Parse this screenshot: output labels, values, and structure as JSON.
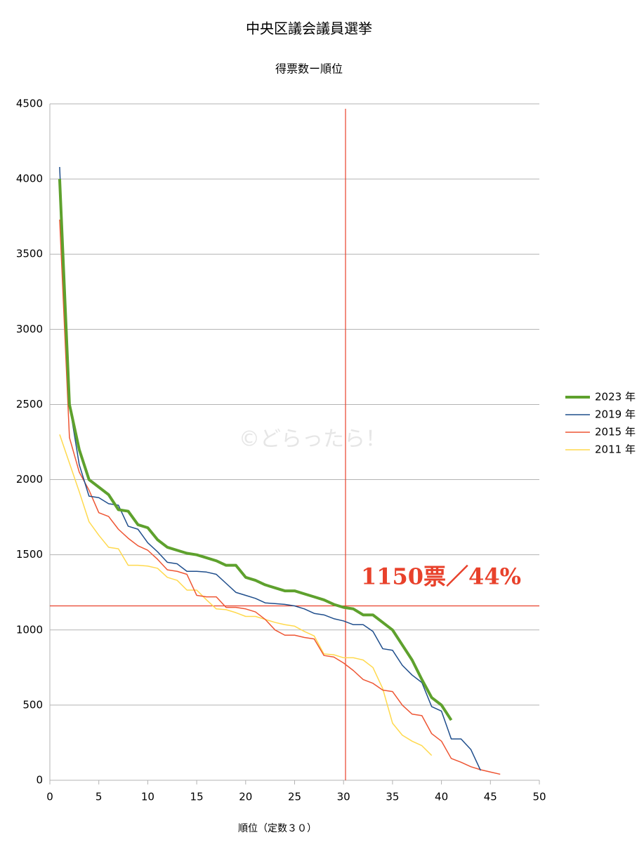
{
  "chart_data": {
    "type": "line",
    "title": "中央区議会議員選挙",
    "subtitle": "得票数ー順位",
    "x_label": "順位（定数３０）",
    "watermark": "©どらったら！",
    "annotation": "1150票／44%",
    "x": [
      1,
      2,
      3,
      4,
      5,
      6,
      7,
      8,
      9,
      10,
      11,
      12,
      13,
      14,
      15,
      16,
      17,
      18,
      19,
      20,
      21,
      22,
      23,
      24,
      25,
      26,
      27,
      28,
      29,
      30,
      31,
      32,
      33,
      34,
      35,
      36,
      37,
      38,
      39,
      40,
      41,
      42,
      43,
      44,
      45,
      46
    ],
    "series": [
      {
        "name": "2023 年",
        "color": "#5ea12d",
        "width": 4,
        "values": [
          4000,
          2500,
          2200,
          2000,
          1950,
          1900,
          1800,
          1790,
          1700,
          1680,
          1600,
          1550,
          1530,
          1510,
          1500,
          1480,
          1460,
          1430,
          1430,
          1350,
          1330,
          1300,
          1280,
          1260,
          1260,
          1240,
          1220,
          1200,
          1170,
          1150,
          1140,
          1100,
          1100,
          1050,
          1000,
          900,
          800,
          670,
          550,
          500,
          400,
          null,
          null,
          null,
          null,
          null
        ]
      },
      {
        "name": "2019 年",
        "color": "#1f4e8c",
        "width": 1.5,
        "values": [
          4080,
          2500,
          2100,
          1890,
          1880,
          1840,
          1830,
          1690,
          1670,
          1580,
          1520,
          1450,
          1440,
          1390,
          1390,
          1385,
          1370,
          1310,
          1250,
          1230,
          1210,
          1180,
          1175,
          1170,
          1160,
          1140,
          1110,
          1100,
          1075,
          1060,
          1035,
          1035,
          990,
          875,
          865,
          765,
          700,
          650,
          490,
          460,
          275,
          275,
          205,
          65,
          null,
          null
        ]
      },
      {
        "name": "2015 年",
        "color": "#ee5533",
        "width": 1.5,
        "values": [
          3730,
          2280,
          2050,
          1930,
          1780,
          1755,
          1670,
          1610,
          1560,
          1530,
          1470,
          1400,
          1390,
          1370,
          1230,
          1220,
          1220,
          1150,
          1150,
          1140,
          1120,
          1070,
          1000,
          965,
          965,
          950,
          940,
          830,
          820,
          780,
          730,
          670,
          645,
          600,
          590,
          500,
          440,
          430,
          310,
          260,
          145,
          120,
          90,
          70,
          55,
          40
        ]
      },
      {
        "name": "2011 年",
        "color": "#ffd94d",
        "width": 1.5,
        "values": [
          2300,
          2110,
          1920,
          1720,
          1630,
          1550,
          1540,
          1430,
          1430,
          1425,
          1410,
          1350,
          1330,
          1265,
          1265,
          1200,
          1140,
          1135,
          1115,
          1090,
          1090,
          1070,
          1050,
          1035,
          1025,
          990,
          960,
          840,
          835,
          815,
          815,
          800,
          750,
          610,
          380,
          300,
          260,
          230,
          165,
          null,
          null,
          null,
          null,
          null,
          null,
          null
        ]
      }
    ],
    "reference_lines": [
      {
        "axis": "x",
        "value": 30.2,
        "color": "#e8412b"
      },
      {
        "axis": "y",
        "value": 1160,
        "color": "#e8412b"
      }
    ],
    "xlim": [
      0,
      50
    ],
    "xticks": [
      0,
      5,
      10,
      15,
      20,
      25,
      30,
      35,
      40,
      45,
      50
    ],
    "ylim": [
      0,
      4500
    ],
    "yticks": [
      0,
      500,
      1000,
      1500,
      2000,
      2500,
      3000,
      3500,
      4000,
      4500
    ],
    "grid": true,
    "legend": "right"
  }
}
